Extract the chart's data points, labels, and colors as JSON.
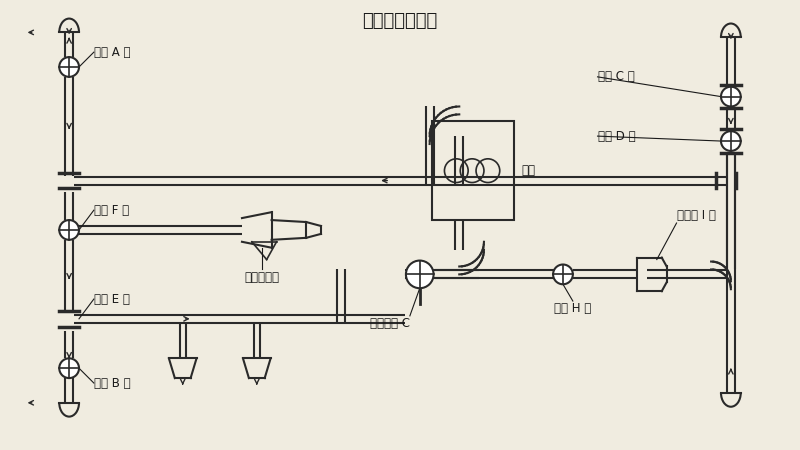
{
  "title": "洒水、浇灌花木",
  "bg_color": "#f0ece0",
  "line_color": "#2a2a2a",
  "text_color": "#1a1a1a",
  "fig_w": 8.0,
  "fig_h": 4.5,
  "labels": {
    "ball_A": "球阀 A 开",
    "ball_B": "球阀 B 开",
    "ball_C": "球阀 C 开",
    "ball_D": "球阀 D 开",
    "ball_E": "球阀 E 开",
    "ball_F": "球阀 F 关",
    "ball_G": "三通球阀 C",
    "ball_H": "球阀 H 关",
    "ball_I": "消防栓 I 关",
    "water_pump": "水泵",
    "nozzle": "洒水炮出口"
  }
}
